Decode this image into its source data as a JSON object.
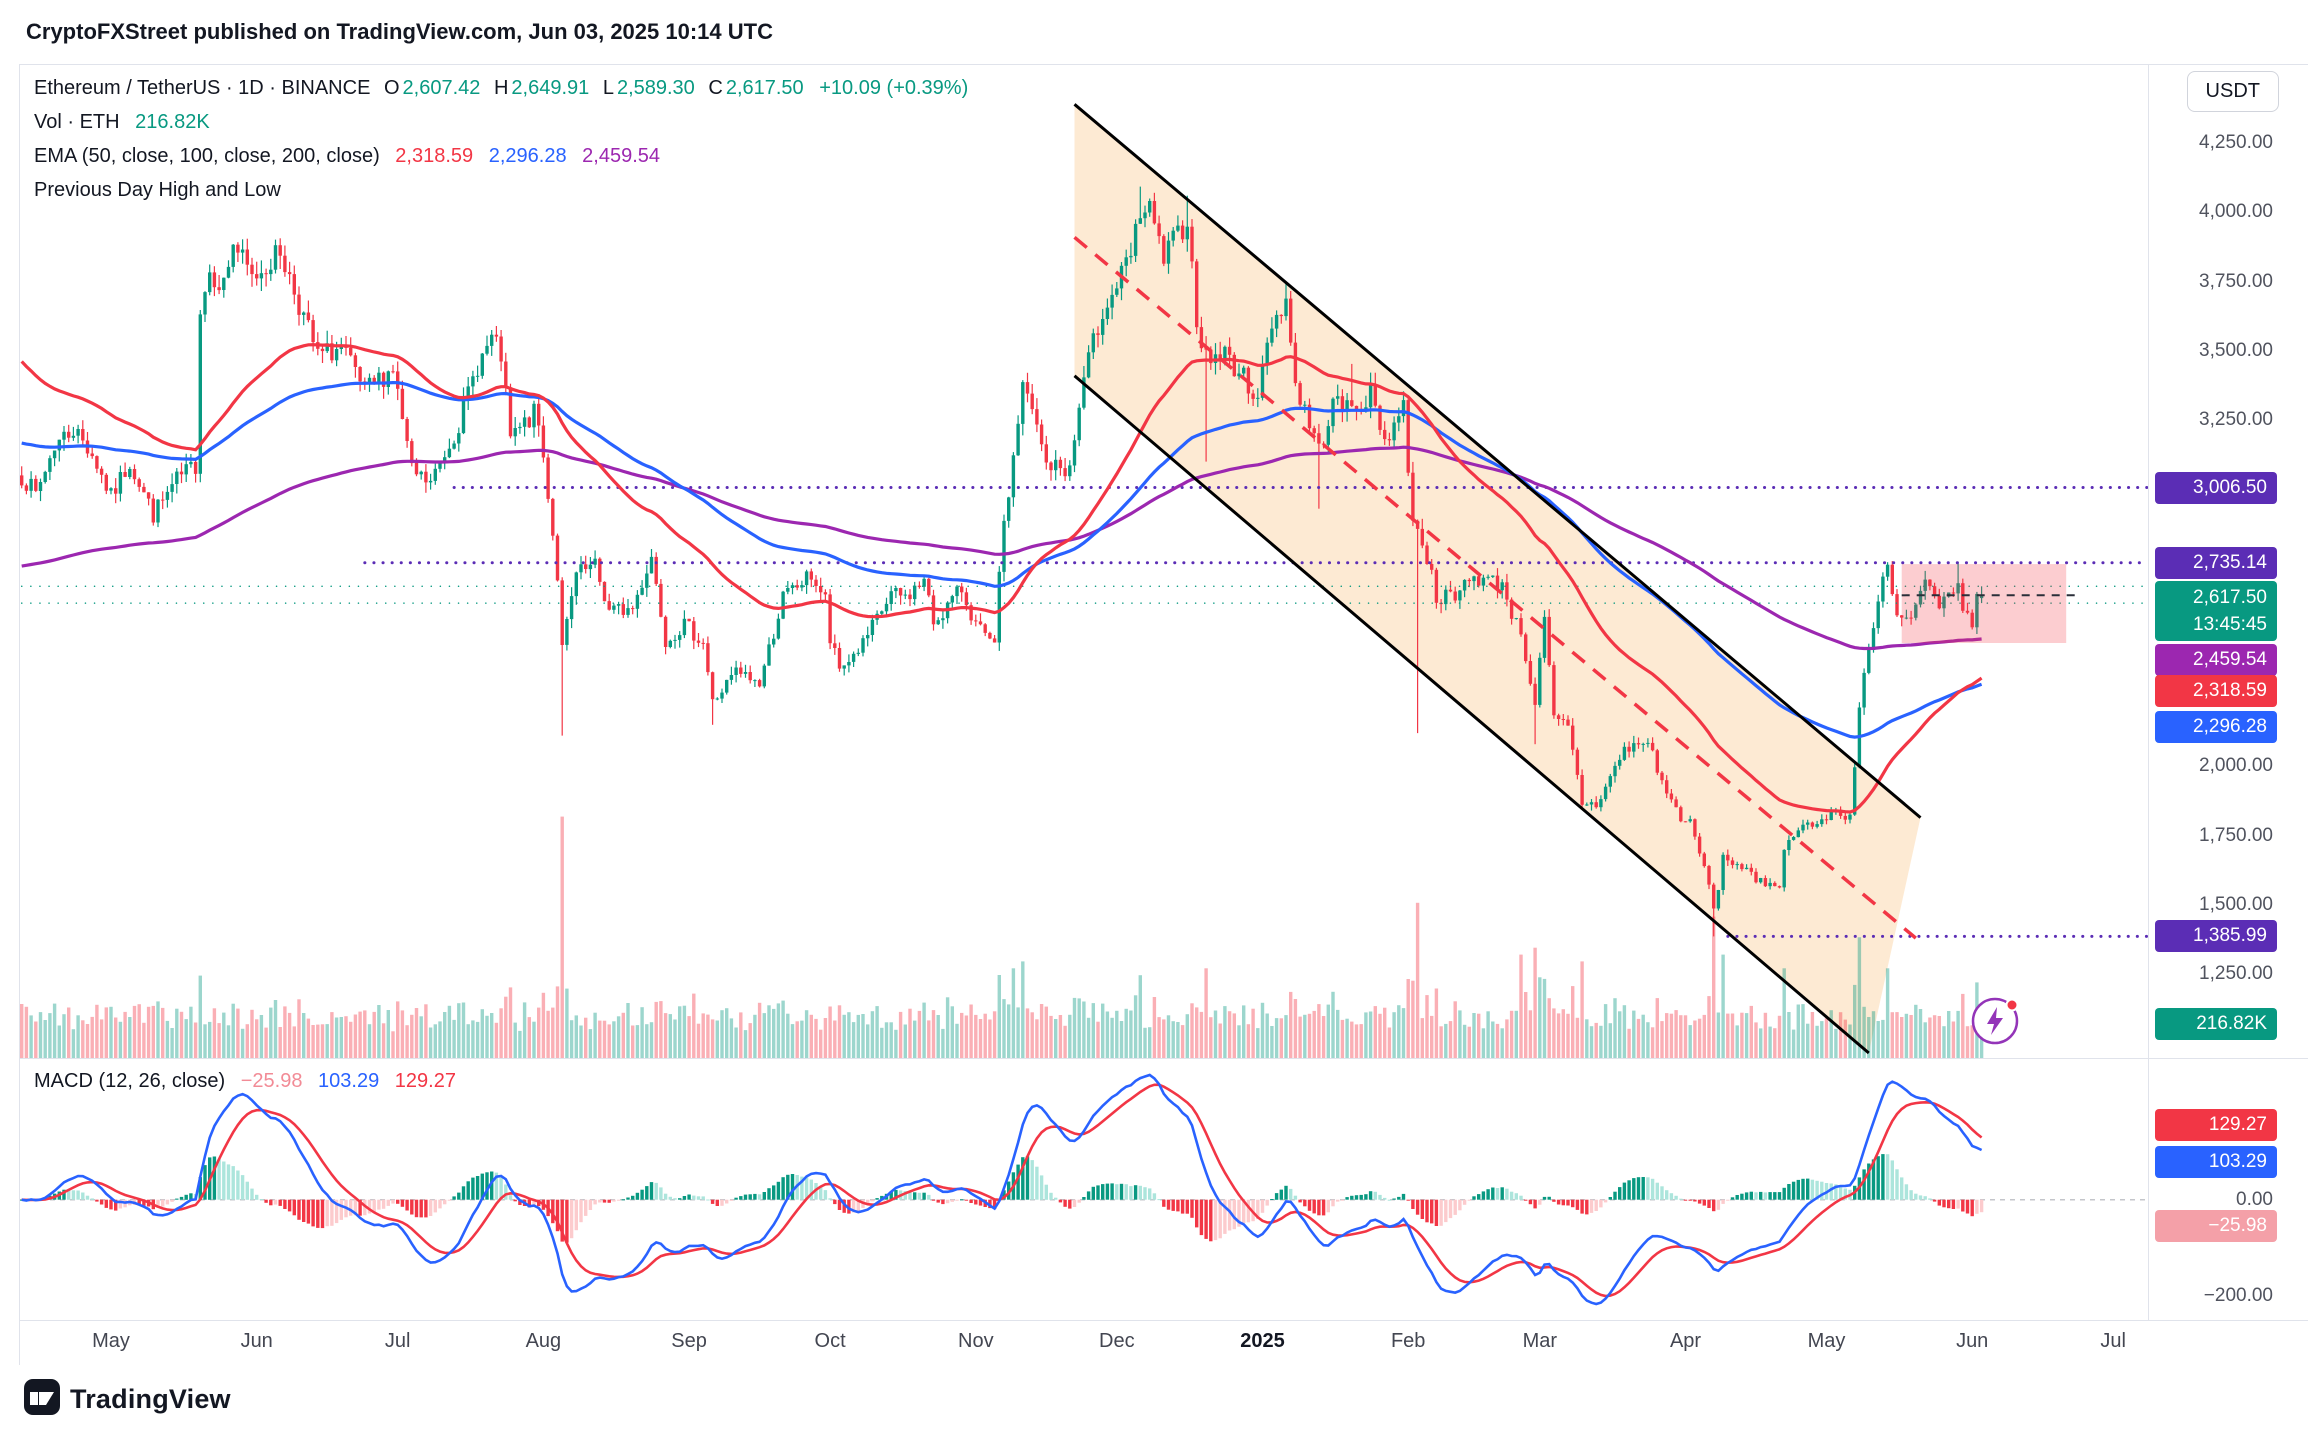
{
  "header": {
    "attribution": "CryptoFXStreet published on TradingView.com, Jun 03, 2025 10:14 UTC"
  },
  "symbol_legend": {
    "title": "Ethereum / TetherUS · 1D · BINANCE",
    "ohlc": {
      "o_label": "O",
      "o": "2,607.42",
      "h_label": "H",
      "h": "2,649.91",
      "l_label": "L",
      "l": "2,589.30",
      "c_label": "C",
      "c": "2,617.50",
      "change": "+10.09 (+0.39%)"
    },
    "volume_row": {
      "label": "Vol · ETH",
      "value": "216.82K"
    },
    "ema_row": {
      "label": "EMA (50, close, 100, close, 200, close)",
      "ema50": "2,318.59",
      "ema100": "2,296.28",
      "ema200": "2,459.54"
    },
    "prevday_row": {
      "label": "Previous Day High and Low"
    }
  },
  "macd_legend": {
    "label": "MACD (12, 26, close)",
    "hist": "−25.98",
    "macd": "103.29",
    "signal": "129.27"
  },
  "price_axis": {
    "currency": "USDT",
    "ticks": [
      "4,250.00",
      "4,000.00",
      "3,750.00",
      "3,500.00",
      "3,250.00",
      "2,000.00",
      "1,750.00",
      "1,500.00",
      "1,250.00"
    ],
    "tick_values": [
      4250,
      4000,
      3750,
      3500,
      3250,
      2000,
      1750,
      1500,
      1250
    ],
    "badges": [
      {
        "text": "3,006.50",
        "price": 3006.5,
        "bg": "#5B2DB5",
        "offset": 0
      },
      {
        "text": "2,735.14",
        "price": 2735.14,
        "bg": "#5B2DB5",
        "offset": 0
      },
      {
        "text": "2,459.54",
        "price": 2459.54,
        "bg": "#9C27B0",
        "offset": 21
      },
      {
        "text": "2,318.59",
        "price": 2318.59,
        "bg": "#F23645",
        "offset": 13
      },
      {
        "text": "2,296.28",
        "price": 2296.28,
        "bg": "#2962FF",
        "offset": 43
      },
      {
        "text": "1,385.99",
        "price": 1385.99,
        "bg": "#5B2DB5",
        "offset": 0
      }
    ],
    "price_badge": {
      "text": "2,617.50",
      "countdown": "13:45:45",
      "price": 2617.5,
      "bg": "#089981",
      "offset": 16
    },
    "volume_badge": {
      "text": "216.82K",
      "bg": "#089981",
      "y": 959
    }
  },
  "macd_axis": {
    "ticks": [
      {
        "text": "0.00",
        "value": 0
      },
      {
        "text": "−200.00",
        "value": -200
      }
    ],
    "badges": [
      {
        "text": "129.27",
        "value": 129.27,
        "bg": "#F23645",
        "offset": -12
      },
      {
        "text": "103.29",
        "value": 103.29,
        "bg": "#2962FF",
        "offset": 12
      },
      {
        "text": "−25.98",
        "value": -25.98,
        "bg": "#F4A0A8",
        "offset": 14
      }
    ]
  },
  "time_axis": {
    "labels": [
      {
        "text": "May",
        "day": 19
      },
      {
        "text": "Jun",
        "day": 50
      },
      {
        "text": "Jul",
        "day": 80
      },
      {
        "text": "Aug",
        "day": 111
      },
      {
        "text": "Sep",
        "day": 142
      },
      {
        "text": "Oct",
        "day": 172
      },
      {
        "text": "Nov",
        "day": 203
      },
      {
        "text": "Dec",
        "day": 233
      },
      {
        "text": "2025",
        "day": 264,
        "bold": true
      },
      {
        "text": "Feb",
        "day": 295
      },
      {
        "text": "Mar",
        "day": 323
      },
      {
        "text": "Apr",
        "day": 354
      },
      {
        "text": "May",
        "day": 384
      },
      {
        "text": "Jun",
        "day": 415
      },
      {
        "text": "Jul",
        "day": 445
      }
    ]
  },
  "footer": {
    "brand": "TradingView"
  },
  "chart_data": {
    "type": "candlestick",
    "symbol": "Ethereum / TetherUS",
    "exchange": "BINANCE",
    "interval": "1D",
    "start_date": "2024-04-12",
    "end_date": "2025-06-03",
    "last_candle": {
      "open": 2607.42,
      "high": 2649.91,
      "low": 2589.3,
      "close": 2617.5,
      "change": 10.09,
      "change_pct": 0.39
    },
    "volume_last": "216.82K",
    "price_range_view": [
      947,
      4532
    ],
    "y_ticks": [
      4250,
      4000,
      3750,
      3500,
      3250,
      3000,
      2750,
      2500,
      2250,
      2000,
      1750,
      1500,
      1250
    ],
    "x_labels": [
      "May",
      "Jun",
      "Jul",
      "Aug",
      "Sep",
      "Oct",
      "Nov",
      "Dec",
      "2025",
      "Feb",
      "Mar",
      "Apr",
      "May",
      "Jun",
      "Jul"
    ],
    "legend_position": "top-left",
    "grid": false,
    "ema": {
      "periods": [
        50,
        100,
        200
      ],
      "colors": [
        "#F23645",
        "#2962FF",
        "#9C27B0"
      ],
      "seeds": [
        3480,
        3170,
        2720
      ],
      "last_values": [
        2318.59,
        2296.28,
        2459.54
      ]
    },
    "macd": {
      "fast": 12,
      "slow": 26,
      "signal_period": 9,
      "last": {
        "macd": 103.29,
        "signal": 129.27,
        "hist": -25.98
      },
      "colors": {
        "macd_line": "#2962FF",
        "signal_line": "#F23645",
        "hist_up_grow": "#089981",
        "hist_up_fall": "#ACE5DC",
        "hist_dn_grow": "#F23645",
        "hist_dn_fall": "#FCCBCD"
      }
    },
    "key_levels": [
      {
        "price": 3006.5,
        "color": "#5B2DB5",
        "style": "dotted",
        "from_day": 92,
        "width": 3
      },
      {
        "price": 2735.14,
        "color": "#5B2DB5",
        "style": "dotted",
        "from_day": 73,
        "width": 3
      },
      {
        "price": 1385.99,
        "color": "#5B2DB5",
        "style": "dotted",
        "from_day": 363,
        "width": 3
      },
      {
        "price": 2649.91,
        "color": "#089981",
        "style": "dotted",
        "from_day": 0,
        "width": 1.5
      },
      {
        "price": 2589.3,
        "color": "#089981",
        "style": "dotted",
        "from_day": 0,
        "width": 1.5
      }
    ],
    "channel": {
      "upper": {
        "d1": 224,
        "p1": 4390,
        "d2": 404,
        "p2": 1815
      },
      "lower": {
        "d1": 224,
        "p1": 3410,
        "d2": 393,
        "p2": 965
      },
      "mid_dashed": {
        "d1": 224,
        "p1": 3910,
        "d2": 403,
        "p2": 1380,
        "color": "#F23645"
      },
      "line_color": "#000000",
      "fill": "rgba(245,158,54,0.22)"
    },
    "highlight_box": {
      "from_day": 400,
      "to_day": 435,
      "top_price": 2730,
      "bottom_price": 2445,
      "fill": "rgba(242,54,69,0.25)"
    },
    "current_price_dash": {
      "price": 2617.5,
      "from_day": 400,
      "to_day": 437,
      "color": "#2a2e39"
    },
    "close_waypoints": [
      [
        0,
        3050
      ],
      [
        3,
        2980
      ],
      [
        7,
        3160
      ],
      [
        11,
        3220
      ],
      [
        15,
        3130
      ],
      [
        18,
        3010
      ],
      [
        19,
        2970
      ],
      [
        23,
        3100
      ],
      [
        28,
        2910
      ],
      [
        33,
        3030
      ],
      [
        37,
        3090
      ],
      [
        38,
        3660
      ],
      [
        40,
        3790
      ],
      [
        43,
        3740
      ],
      [
        45,
        3890
      ],
      [
        49,
        3760
      ],
      [
        52,
        3810
      ],
      [
        55,
        3860
      ],
      [
        59,
        3670
      ],
      [
        63,
        3480
      ],
      [
        68,
        3510
      ],
      [
        73,
        3350
      ],
      [
        79,
        3440
      ],
      [
        83,
        3060
      ],
      [
        87,
        3020
      ],
      [
        93,
        3240
      ],
      [
        97,
        3450
      ],
      [
        100,
        3540
      ],
      [
        102,
        3480
      ],
      [
        104,
        3180
      ],
      [
        109,
        3270
      ],
      [
        110,
        3230
      ],
      [
        112,
        2990
      ],
      [
        114,
        2690
      ],
      [
        115,
        2420
      ],
      [
        118,
        2690
      ],
      [
        122,
        2720
      ],
      [
        125,
        2560
      ],
      [
        130,
        2570
      ],
      [
        134,
        2760
      ],
      [
        137,
        2460
      ],
      [
        141,
        2510
      ],
      [
        145,
        2450
      ],
      [
        147,
        2230
      ],
      [
        152,
        2340
      ],
      [
        157,
        2300
      ],
      [
        162,
        2610
      ],
      [
        165,
        2650
      ],
      [
        168,
        2690
      ],
      [
        171,
        2600
      ],
      [
        172,
        2450
      ],
      [
        174,
        2350
      ],
      [
        179,
        2440
      ],
      [
        185,
        2620
      ],
      [
        188,
        2610
      ],
      [
        192,
        2670
      ],
      [
        194,
        2520
      ],
      [
        200,
        2640
      ],
      [
        203,
        2510
      ],
      [
        207,
        2420
      ],
      [
        208,
        2720
      ],
      [
        211,
        3120
      ],
      [
        213,
        3370
      ],
      [
        215,
        3280
      ],
      [
        218,
        3090
      ],
      [
        223,
        3070
      ],
      [
        226,
        3400
      ],
      [
        230,
        3650
      ],
      [
        232,
        3700
      ],
      [
        236,
        3840
      ],
      [
        238,
        4000
      ],
      [
        240,
        4000
      ],
      [
        243,
        3830
      ],
      [
        248,
        3980
      ],
      [
        250,
        3620
      ],
      [
        252,
        3470
      ],
      [
        256,
        3490
      ],
      [
        260,
        3400
      ],
      [
        263,
        3340
      ],
      [
        266,
        3600
      ],
      [
        269,
        3690
      ],
      [
        271,
        3380
      ],
      [
        276,
        3140
      ],
      [
        279,
        3310
      ],
      [
        283,
        3290
      ],
      [
        287,
        3340
      ],
      [
        290,
        3180
      ],
      [
        294,
        3300
      ],
      [
        296,
        2870
      ],
      [
        297,
        2880
      ],
      [
        301,
        2620
      ],
      [
        305,
        2600
      ],
      [
        308,
        2690
      ],
      [
        312,
        2670
      ],
      [
        315,
        2660
      ],
      [
        318,
        2510
      ],
      [
        319,
        2490
      ],
      [
        321,
        2310
      ],
      [
        322,
        2230
      ],
      [
        324,
        2520
      ],
      [
        326,
        2170
      ],
      [
        329,
        2140
      ],
      [
        332,
        1870
      ],
      [
        335,
        1860
      ],
      [
        341,
        2060
      ],
      [
        346,
        2090
      ],
      [
        350,
        1900
      ],
      [
        353,
        1820
      ],
      [
        355,
        1790
      ],
      [
        359,
        1580
      ],
      [
        360,
        1470
      ],
      [
        362,
        1670
      ],
      [
        366,
        1640
      ],
      [
        369,
        1580
      ],
      [
        374,
        1580
      ],
      [
        375,
        1690
      ],
      [
        378,
        1790
      ],
      [
        383,
        1790
      ],
      [
        385,
        1840
      ],
      [
        389,
        1820
      ],
      [
        391,
        2210
      ],
      [
        392,
        2340
      ],
      [
        394,
        2480
      ],
      [
        396,
        2680
      ],
      [
        397,
        2710
      ],
      [
        399,
        2530
      ],
      [
        402,
        2530
      ],
      [
        405,
        2660
      ],
      [
        408,
        2560
      ],
      [
        410,
        2650
      ],
      [
        412,
        2630
      ],
      [
        414,
        2530
      ],
      [
        415,
        2530
      ],
      [
        416,
        2607
      ],
      [
        417,
        2617.5
      ]
    ],
    "wick_lows": [
      [
        115,
        2111
      ],
      [
        147,
        2150
      ],
      [
        252,
        3100
      ],
      [
        276,
        2930
      ],
      [
        297,
        2120
      ],
      [
        322,
        2080
      ],
      [
        360,
        1385.99
      ]
    ],
    "wick_highs": [
      [
        238,
        4093
      ],
      [
        248,
        4060
      ],
      [
        269,
        3742
      ],
      [
        283,
        3453
      ],
      [
        397,
        2737
      ],
      [
        412,
        2738
      ]
    ],
    "volume_spikes_k": [
      [
        115,
        1400
      ],
      [
        211,
        520
      ],
      [
        213,
        560
      ],
      [
        238,
        480
      ],
      [
        252,
        520
      ],
      [
        297,
        900
      ],
      [
        319,
        600
      ],
      [
        322,
        640
      ],
      [
        332,
        560
      ],
      [
        360,
        820
      ],
      [
        362,
        600
      ],
      [
        391,
        700
      ],
      [
        397,
        520
      ]
    ],
    "colors": {
      "up": "#089981",
      "down": "#F23645",
      "vol_up": "rgba(8,153,129,0.4)",
      "vol_down": "rgba(242,54,69,0.4)"
    }
  }
}
